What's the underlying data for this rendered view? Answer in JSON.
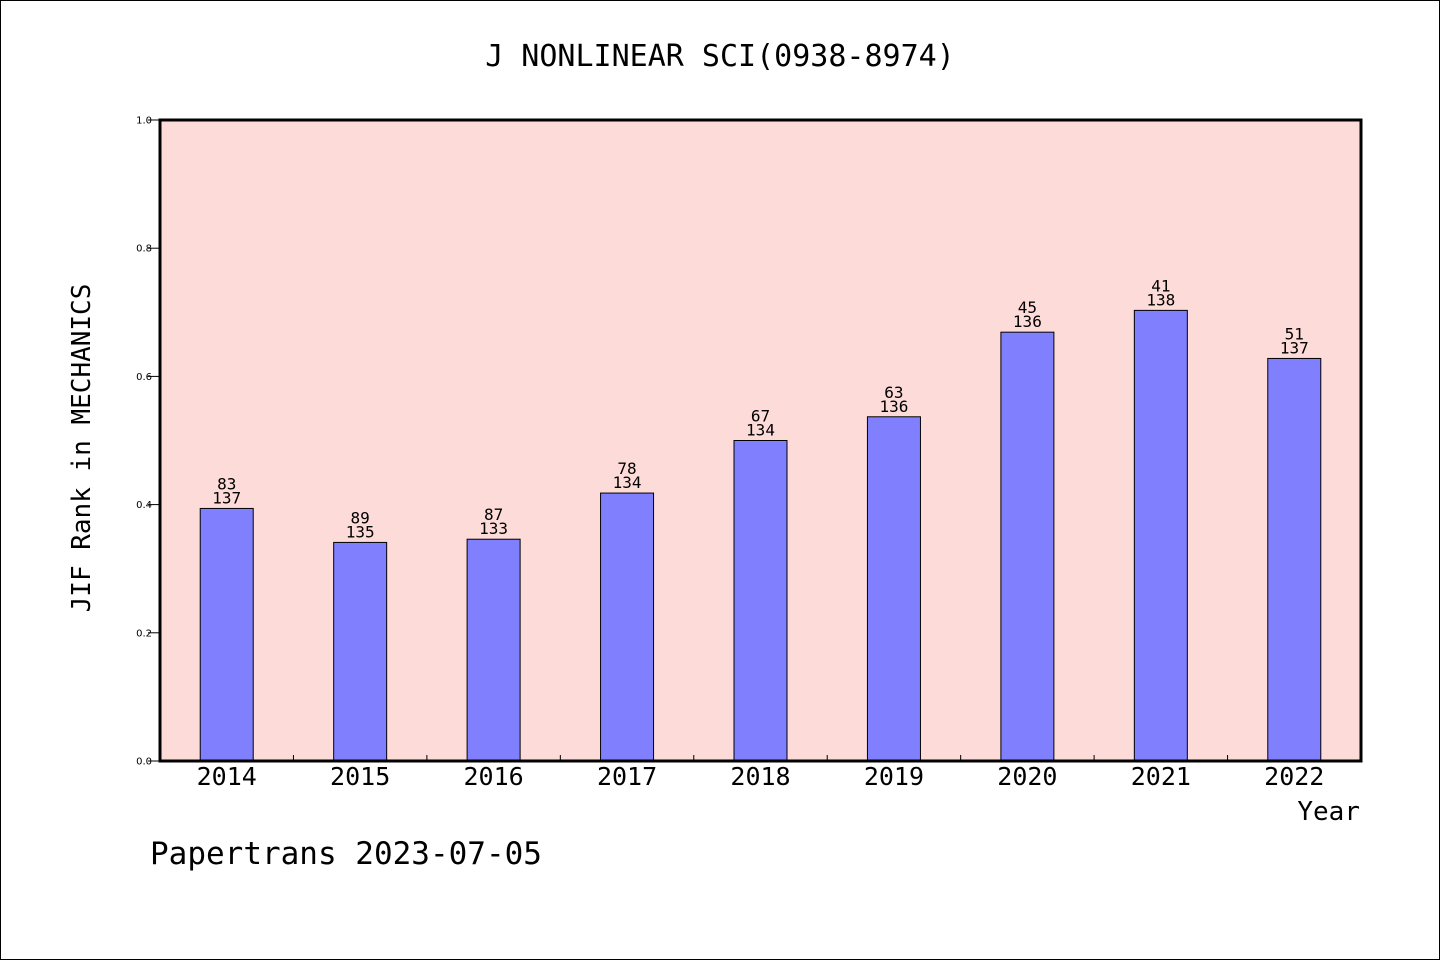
{
  "chart_data": {
    "type": "bar",
    "title": "J NONLINEAR SCI(0938-8974)",
    "xlabel": "Year",
    "ylabel": "JIF Rank in MECHANICS",
    "ylim": [
      0,
      1.0
    ],
    "yticks": [
      "0.0",
      "0.2",
      "0.4",
      "0.6",
      "0.8",
      "1.0"
    ],
    "categories": [
      "2014",
      "2015",
      "2016",
      "2017",
      "2018",
      "2019",
      "2020",
      "2021",
      "2022"
    ],
    "values": [
      0.394,
      0.341,
      0.346,
      0.418,
      0.5,
      0.537,
      0.669,
      0.703,
      0.628
    ],
    "rank": [
      "83",
      "89",
      "87",
      "78",
      "67",
      "63",
      "45",
      "41",
      "51"
    ],
    "total": [
      "137",
      "135",
      "133",
      "134",
      "134",
      "136",
      "136",
      "138",
      "137"
    ],
    "colors": {
      "plot_background": "#fddbd9",
      "bar_fill": "#8080ff",
      "bar_stroke": "#000000"
    },
    "grid": false
  },
  "footer": {
    "text": "Papertrans 2023-07-05"
  }
}
